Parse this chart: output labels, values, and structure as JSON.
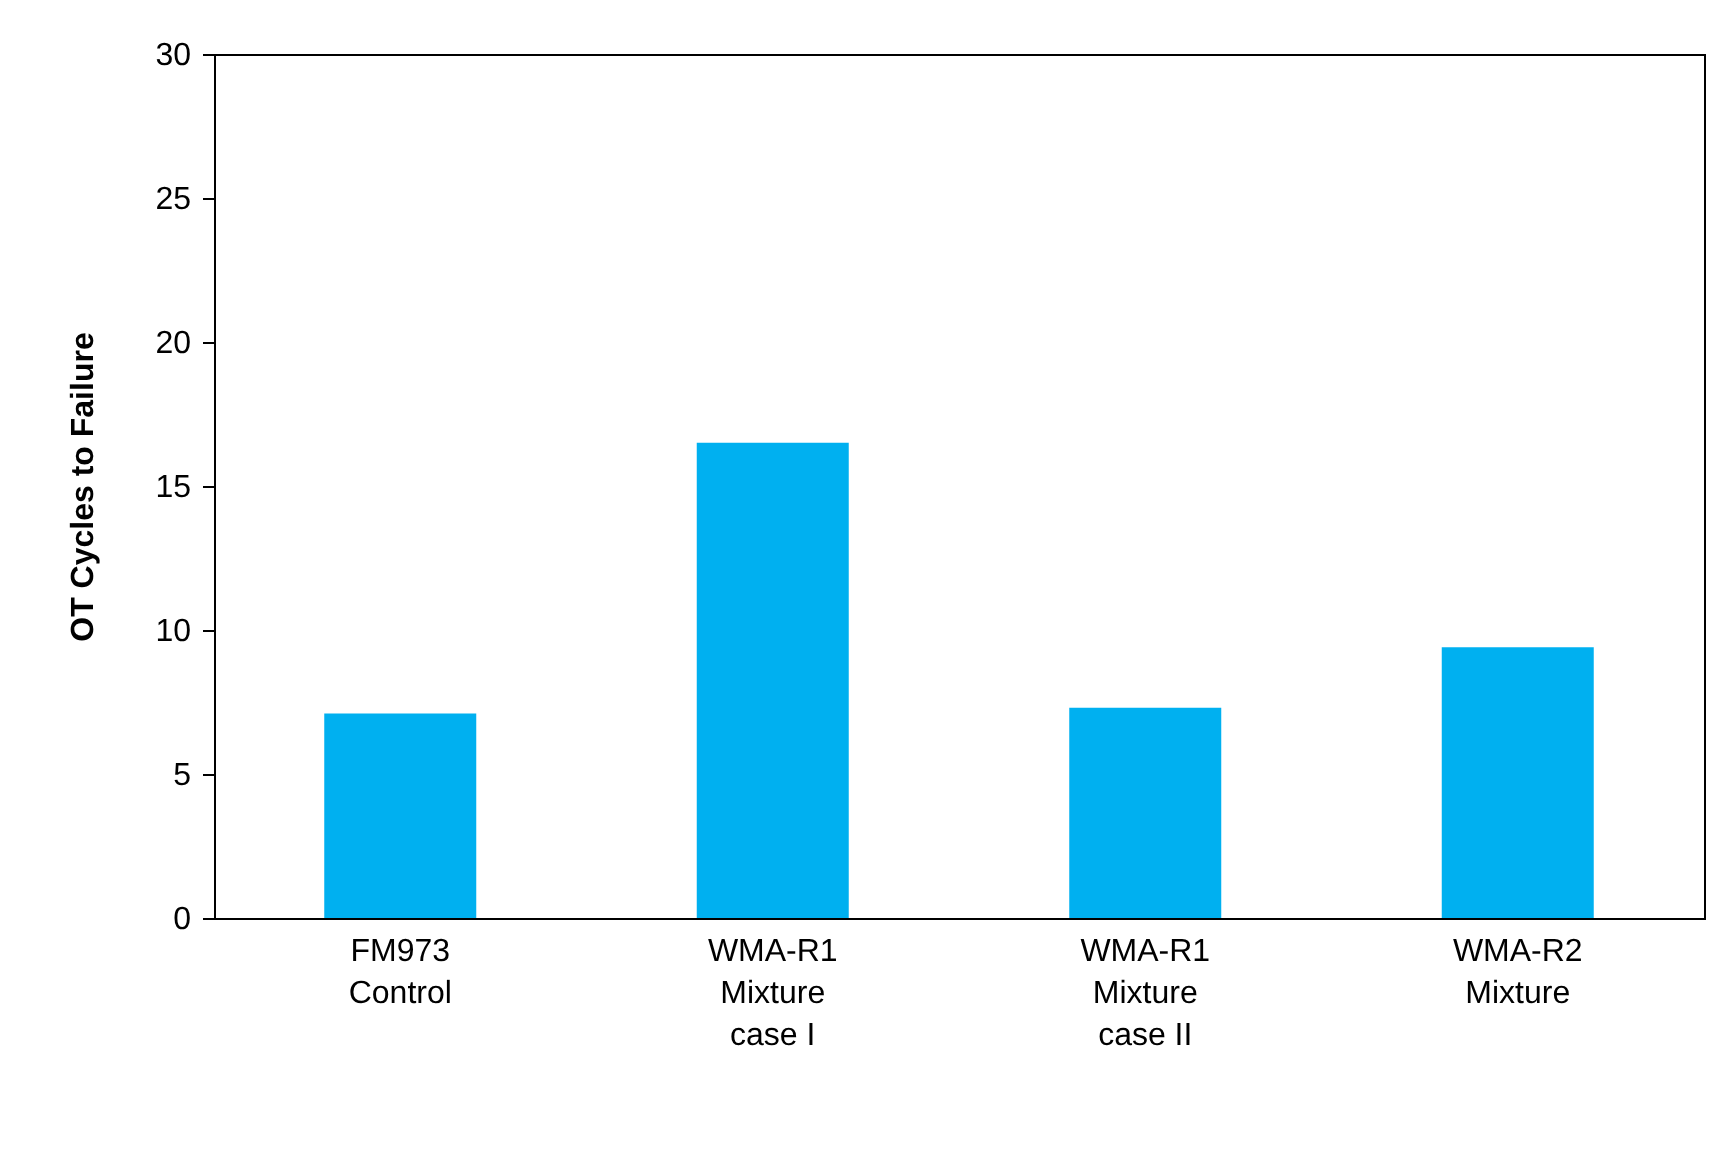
{
  "chart_data": {
    "type": "bar",
    "ylabel": "OT Cycles to Failure",
    "categories": [
      "FM973\nControl",
      "WMA-R1\nMixture\ncase I",
      "WMA-R1\nMixture\ncase II",
      "WMA-R2\nMixture"
    ],
    "values": [
      7.1,
      16.5,
      7.3,
      9.4
    ],
    "color": "#00b0f0",
    "ylim": [
      0,
      30
    ],
    "yticks": [
      0,
      5,
      10,
      15,
      20,
      25,
      30
    ],
    "grid": false
  }
}
